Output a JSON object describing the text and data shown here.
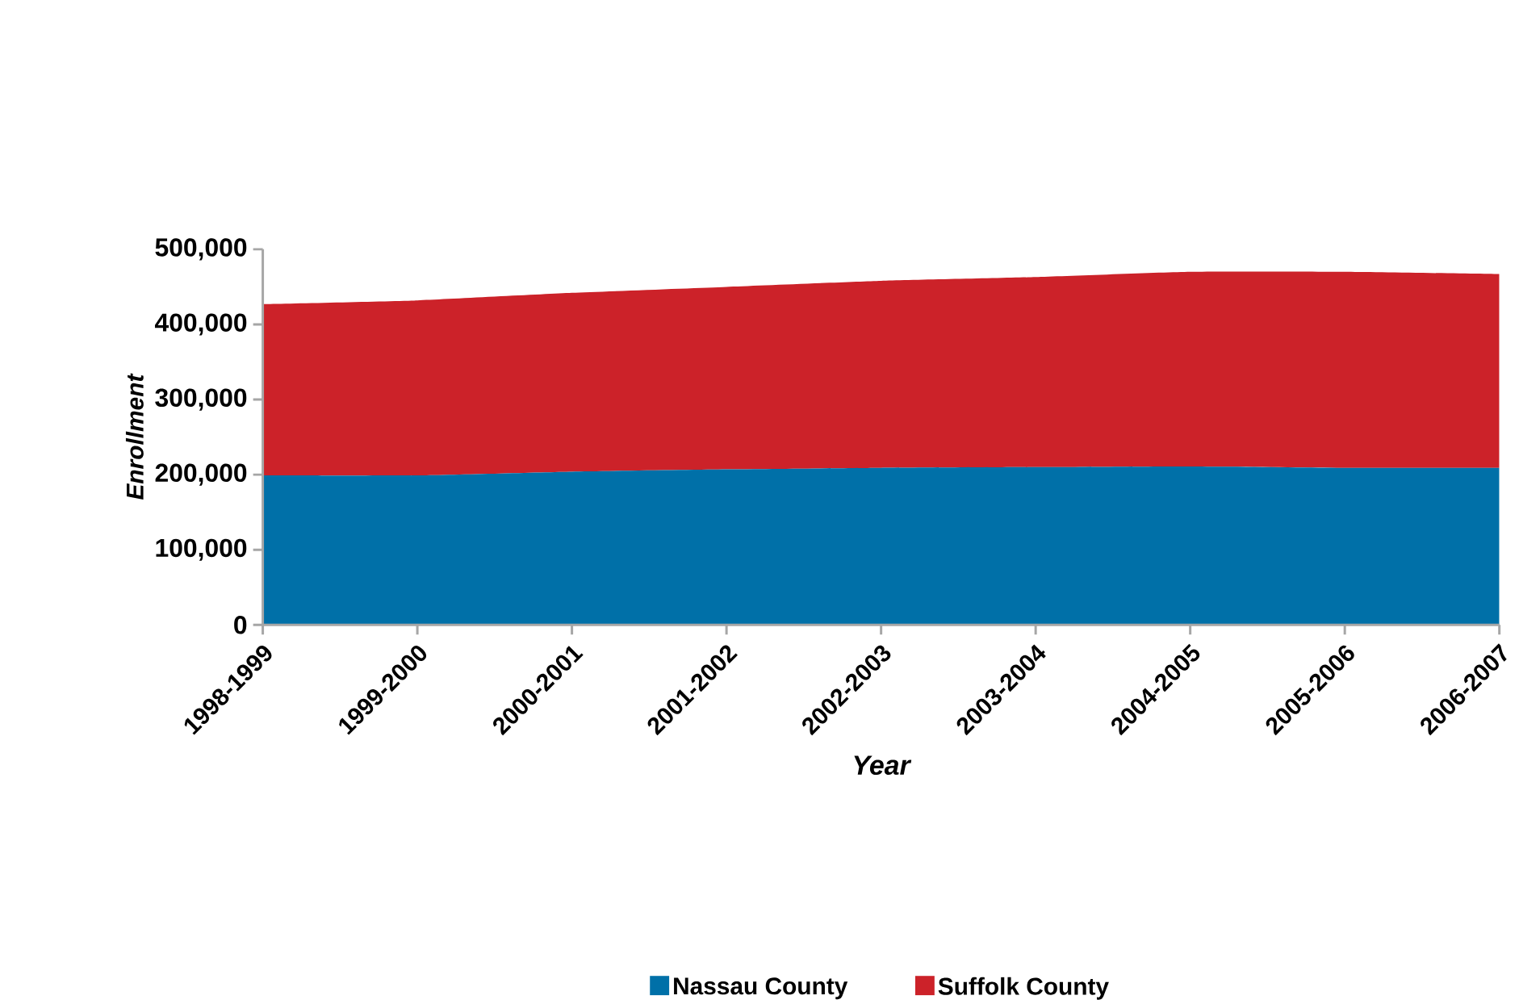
{
  "chart_data": {
    "type": "area",
    "stacked": true,
    "xlabel": "Year",
    "ylabel": "Enrollment",
    "categories": [
      "1998-1999",
      "1999-2000",
      "2000-2001",
      "2001-2002",
      "2002-2003",
      "2003-2004",
      "2004-2005",
      "2005-2006",
      "2006-2007"
    ],
    "series": [
      {
        "name": "Nassau County",
        "color": "#0070a8",
        "values": [
          199000,
          199000,
          204000,
          207000,
          209000,
          210000,
          211000,
          209000,
          209000
        ]
      },
      {
        "name": "Suffolk County",
        "color": "#cc2229",
        "values": [
          228000,
          233000,
          238000,
          243000,
          249000,
          253000,
          259000,
          261000,
          258000
        ]
      }
    ],
    "ylim": [
      0,
      500000
    ],
    "yticks": [
      {
        "value": 0,
        "label": "0"
      },
      {
        "value": 100000,
        "label": "100,000"
      },
      {
        "value": 200000,
        "label": "200,000"
      },
      {
        "value": 300000,
        "label": "300,000"
      },
      {
        "value": 400000,
        "label": "400,000"
      },
      {
        "value": 500000,
        "label": "500,000"
      }
    ],
    "grid": false,
    "legend": "bottom"
  }
}
